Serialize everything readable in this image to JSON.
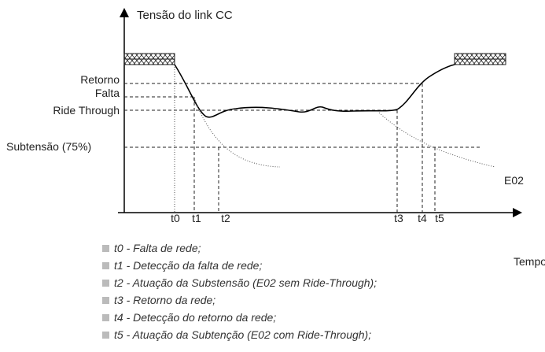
{
  "axis": {
    "y_label": "Tensão do link CC",
    "x_label": "Tempo"
  },
  "levels": [
    "Retorno",
    "Falta",
    "Ride Through",
    "Subtensão (75%)"
  ],
  "times": [
    "t0",
    "t1",
    "t2",
    "t3",
    "t4",
    "t5"
  ],
  "curve_label": "E02",
  "legend": [
    "t0 - Falta de rede;",
    "t1 - Detecção da falta de rede;",
    "t2 - Atuação da Substensão (E02 sem Ride-Through);",
    "t3 - Retorno da rede;",
    "t4 - Detecção do retorno da rede;",
    "t5 - Atuação da Subtenção (E02 com Ride-Through);"
  ]
}
